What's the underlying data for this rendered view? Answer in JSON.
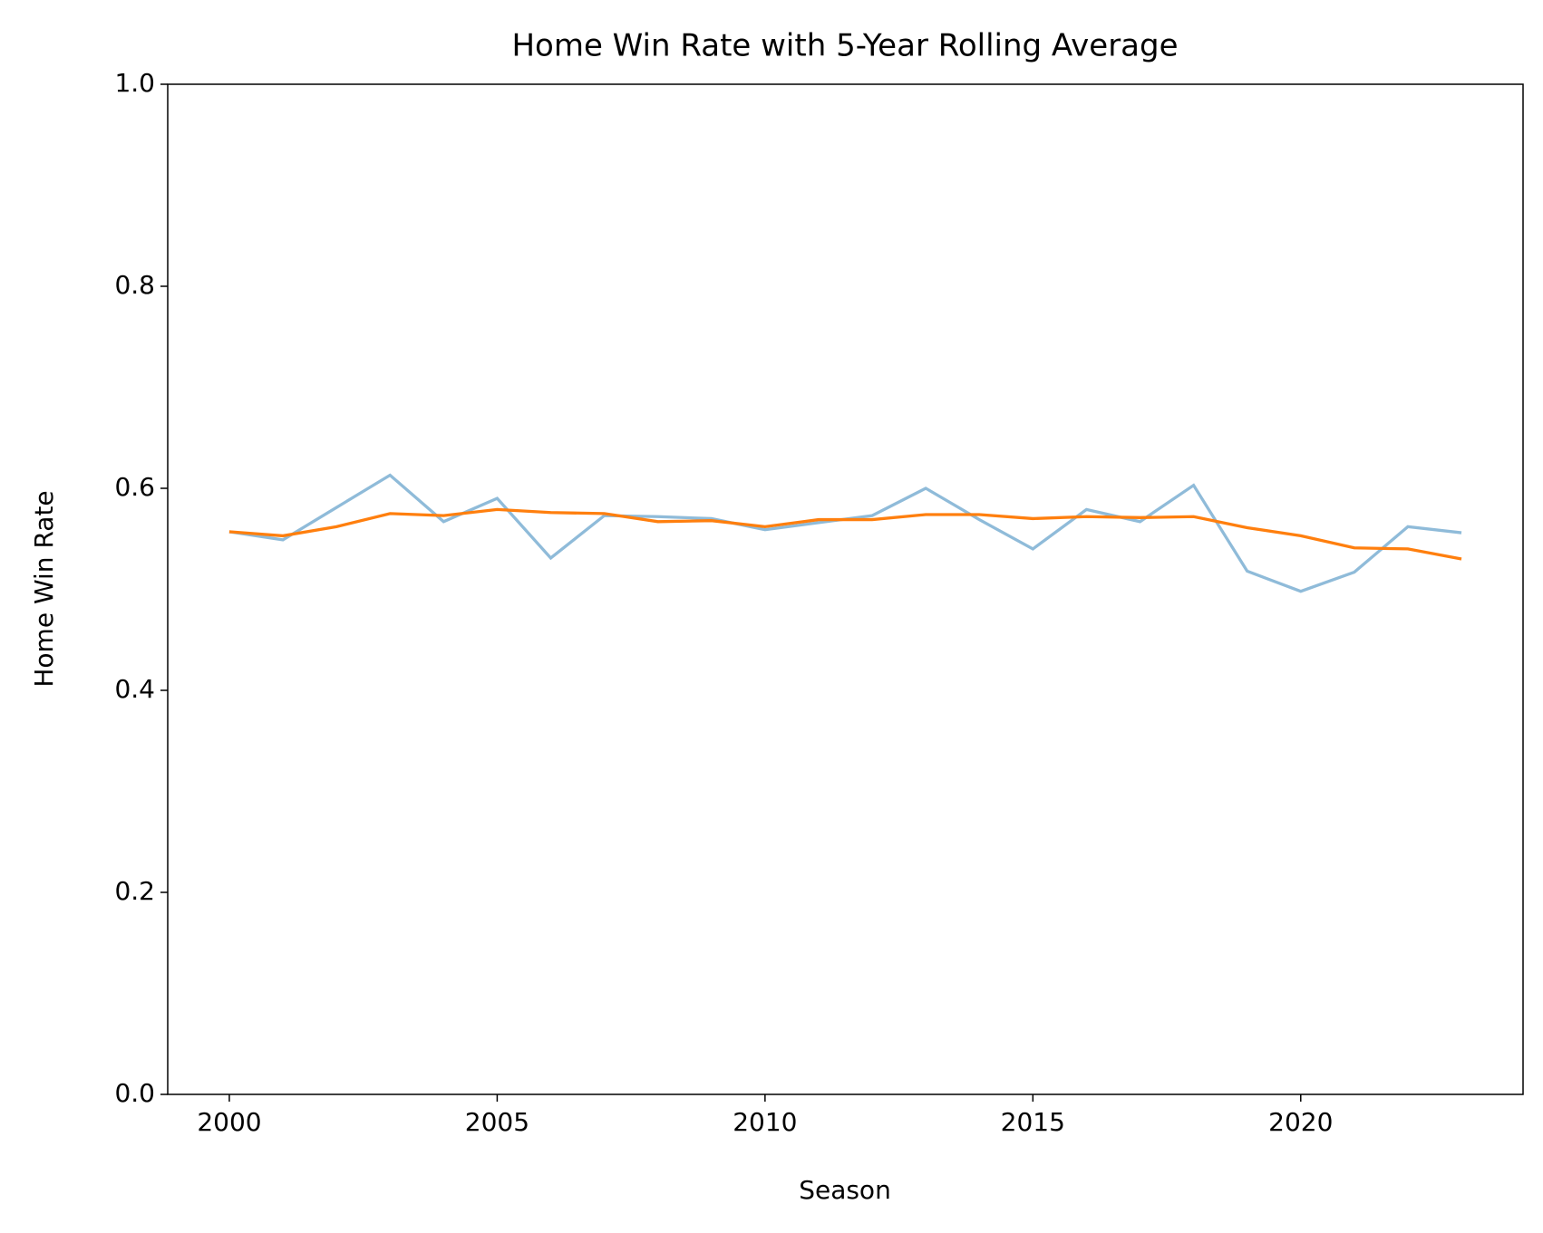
{
  "chart_data": {
    "type": "line",
    "title": "Home Win Rate with 5-Year Rolling Average",
    "x_label": "Season",
    "y_label": "Home Win Rate",
    "x": [
      2000,
      2001,
      2002,
      2003,
      2004,
      2005,
      2006,
      2007,
      2008,
      2009,
      2010,
      2011,
      2012,
      2013,
      2014,
      2015,
      2016,
      2017,
      2018,
      2019,
      2020,
      2021,
      2022,
      2023
    ],
    "series": [
      {
        "color": "#1f77b4",
        "alpha": 0.5,
        "values": [
          0.557,
          0.549,
          0.581,
          0.613,
          0.567,
          0.59,
          0.531,
          0.573,
          0.572,
          0.57,
          0.559,
          0.566,
          0.573,
          0.6,
          0.569,
          0.54,
          0.579,
          0.567,
          0.603,
          0.518,
          0.498,
          0.517,
          0.562,
          0.556
        ]
      },
      {
        "color": "#ff7f0e",
        "alpha": 1,
        "values": [
          0.557,
          0.553,
          0.562,
          0.575,
          0.573,
          0.579,
          0.576,
          0.575,
          0.567,
          0.568,
          0.562,
          0.569,
          0.569,
          0.574,
          0.574,
          0.57,
          0.572,
          0.571,
          0.572,
          0.561,
          0.553,
          0.541,
          0.54,
          0.53
        ]
      }
    ],
    "xlim": [
      1998.85,
      2024.15
    ],
    "xticks": [
      2000,
      2005,
      2010,
      2015,
      2020
    ],
    "ylim": [
      0,
      1
    ],
    "yticks": [
      {
        "value": 0,
        "label": "0.0"
      },
      0.2,
      0.4,
      0.6,
      0.8,
      {
        "value": 1,
        "label": "1.0"
      }
    ],
    "grid": false
  }
}
